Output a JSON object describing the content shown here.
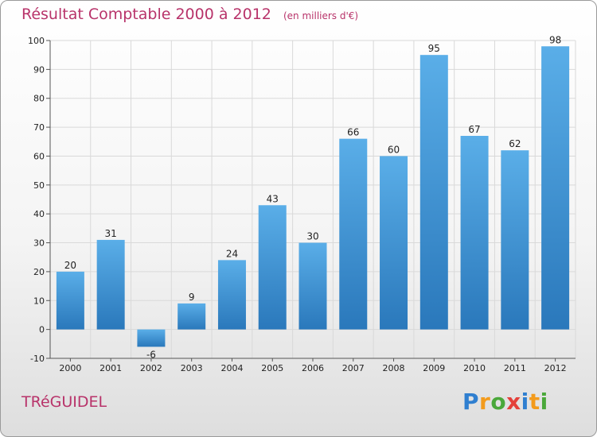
{
  "title": "Résultat Comptable 2000 à 2012",
  "unit_note": "(en milliers d'€)",
  "commune": "TRéGUIDEL",
  "brand": {
    "letters": [
      "P",
      "r",
      "o",
      "x",
      "i",
      "t",
      "i"
    ],
    "colors": [
      "#2f7fd0",
      "#f39b1c",
      "#4aa83a",
      "#e4403a",
      "#2f7fd0",
      "#f39b1c",
      "#4aa83a"
    ]
  },
  "colors": {
    "title": "#b8336a",
    "bar_light": "#5aaee8",
    "bar_dark": "#2a78bb",
    "grid": "#d9d9d9"
  },
  "chart_data": {
    "type": "bar",
    "title": "Résultat Comptable 2000 à 2012",
    "subtitle": "(en milliers d'€)",
    "xlabel": "",
    "ylabel": "",
    "categories": [
      "2000",
      "2001",
      "2002",
      "2003",
      "2004",
      "2005",
      "2006",
      "2007",
      "2008",
      "2009",
      "2010",
      "2011",
      "2012"
    ],
    "values": [
      20,
      31,
      -6,
      9,
      24,
      43,
      30,
      66,
      60,
      95,
      67,
      62,
      98
    ],
    "ylim": [
      -10,
      100
    ],
    "yticks": [
      -10,
      0,
      10,
      20,
      30,
      40,
      50,
      60,
      70,
      80,
      90,
      100
    ],
    "grid": true
  }
}
